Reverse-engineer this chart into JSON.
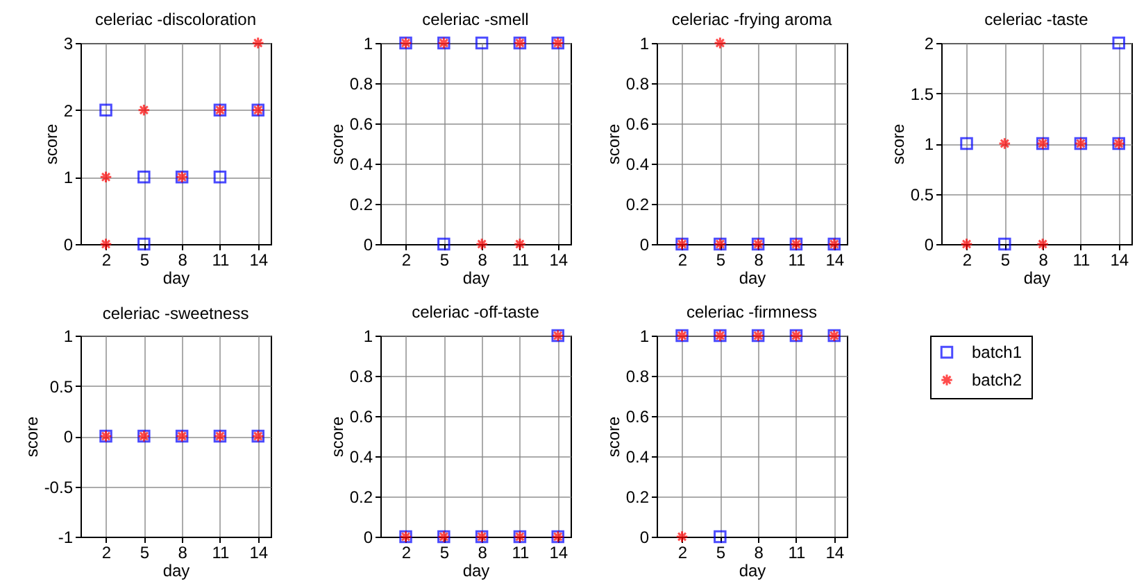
{
  "chart_data": [
    {
      "type": "scatter",
      "title": "celeriac -discoloration",
      "xlabel": "day",
      "ylabel": "score",
      "xlim": [
        0,
        15
      ],
      "xticks": [
        2,
        5,
        8,
        11,
        14
      ],
      "ylim": [
        0,
        3
      ],
      "yticks": [
        0,
        1,
        2,
        3
      ],
      "grid": true,
      "series": [
        {
          "color": "#0000ff",
          "marker": "square",
          "x": [
            2,
            5,
            5,
            8,
            11,
            11,
            14
          ],
          "values": [
            2,
            1,
            0,
            1,
            2,
            1,
            2
          ]
        },
        {
          "color": "#ff0000",
          "marker": "cross",
          "x": [
            2,
            2,
            5,
            8,
            11,
            14,
            14
          ],
          "values": [
            1,
            0,
            2,
            1,
            2,
            3,
            2
          ]
        }
      ]
    },
    {
      "type": "scatter",
      "title": "celeriac -smell",
      "xlabel": "day",
      "ylabel": "score",
      "xlim": [
        0,
        15
      ],
      "xticks": [
        2,
        5,
        8,
        11,
        14
      ],
      "ylim": [
        0,
        1
      ],
      "yticks": [
        0,
        0.2,
        0.4,
        0.6,
        0.8,
        1
      ],
      "grid": true,
      "series": [
        {
          "color": "#0000ff",
          "marker": "square",
          "x": [
            2,
            5,
            5,
            8,
            11,
            14
          ],
          "values": [
            1,
            1,
            0,
            1,
            1,
            1
          ]
        },
        {
          "color": "#ff0000",
          "marker": "cross",
          "x": [
            2,
            5,
            8,
            11,
            11,
            14
          ],
          "values": [
            1,
            1,
            0,
            1,
            0,
            1
          ]
        }
      ]
    },
    {
      "type": "scatter",
      "title": "celeriac -frying aroma",
      "xlabel": "day",
      "ylabel": "score",
      "xlim": [
        0,
        15
      ],
      "xticks": [
        2,
        5,
        8,
        11,
        14
      ],
      "ylim": [
        0,
        1
      ],
      "yticks": [
        0,
        0.2,
        0.4,
        0.6,
        0.8,
        1
      ],
      "grid": true,
      "series": [
        {
          "color": "#0000ff",
          "marker": "square",
          "x": [
            2,
            5,
            8,
            11,
            14
          ],
          "values": [
            0,
            0,
            0,
            0,
            0
          ]
        },
        {
          "color": "#ff0000",
          "marker": "cross",
          "x": [
            2,
            5,
            5,
            8,
            11,
            14
          ],
          "values": [
            0,
            0,
            1,
            0,
            0,
            0
          ]
        }
      ]
    },
    {
      "type": "scatter",
      "title": "celeriac -taste",
      "xlabel": "day",
      "ylabel": "score",
      "xlim": [
        0,
        15
      ],
      "xticks": [
        2,
        5,
        8,
        11,
        14
      ],
      "ylim": [
        0,
        2
      ],
      "yticks": [
        0,
        0.5,
        1,
        1.5,
        2
      ],
      "grid": true,
      "series": [
        {
          "color": "#0000ff",
          "marker": "square",
          "x": [
            2,
            5,
            8,
            11,
            14,
            14
          ],
          "values": [
            1,
            0,
            1,
            1,
            1,
            2
          ]
        },
        {
          "color": "#ff0000",
          "marker": "cross",
          "x": [
            2,
            5,
            8,
            8,
            11,
            14
          ],
          "values": [
            0,
            1,
            1,
            0,
            1,
            1
          ]
        }
      ]
    },
    {
      "type": "scatter",
      "title": "celeriac -sweetness",
      "xlabel": "day",
      "ylabel": "score",
      "xlim": [
        0,
        15
      ],
      "xticks": [
        2,
        5,
        8,
        11,
        14
      ],
      "ylim": [
        -1,
        1
      ],
      "yticks": [
        -1,
        -0.5,
        0,
        0.5,
        1
      ],
      "grid": true,
      "series": [
        {
          "color": "#0000ff",
          "marker": "square",
          "x": [
            2,
            5,
            8,
            11,
            14
          ],
          "values": [
            0,
            0,
            0,
            0,
            0
          ]
        },
        {
          "color": "#ff0000",
          "marker": "cross",
          "x": [
            2,
            5,
            8,
            11,
            14
          ],
          "values": [
            0,
            0,
            0,
            0,
            0
          ]
        }
      ]
    },
    {
      "type": "scatter",
      "title": "celeriac -off-taste",
      "xlabel": "day",
      "ylabel": "score",
      "xlim": [
        0,
        15
      ],
      "xticks": [
        2,
        5,
        8,
        11,
        14
      ],
      "ylim": [
        0,
        1
      ],
      "yticks": [
        0,
        0.2,
        0.4,
        0.6,
        0.8,
        1
      ],
      "grid": true,
      "series": [
        {
          "color": "#0000ff",
          "marker": "square",
          "x": [
            2,
            5,
            8,
            11,
            14,
            14
          ],
          "values": [
            0,
            0,
            0,
            0,
            0,
            1
          ]
        },
        {
          "color": "#ff0000",
          "marker": "cross",
          "x": [
            2,
            5,
            8,
            11,
            14,
            14
          ],
          "values": [
            0,
            0,
            0,
            0,
            0,
            1
          ]
        }
      ]
    },
    {
      "type": "scatter",
      "title": "celeriac -firmness",
      "xlabel": "day",
      "ylabel": "score",
      "xlim": [
        0,
        15
      ],
      "xticks": [
        2,
        5,
        8,
        11,
        14
      ],
      "ylim": [
        0,
        1
      ],
      "yticks": [
        0,
        0.2,
        0.4,
        0.6,
        0.8,
        1
      ],
      "grid": true,
      "legend": "right",
      "series": [
        {
          "name": "batch1",
          "color": "#0000ff",
          "marker": "square",
          "x": [
            2,
            5,
            5,
            8,
            11,
            14
          ],
          "values": [
            1,
            1,
            0,
            1,
            1,
            1
          ]
        },
        {
          "name": "batch2",
          "color": "#ff0000",
          "marker": "cross",
          "x": [
            2,
            2,
            5,
            8,
            11,
            14
          ],
          "values": [
            1,
            0,
            1,
            1,
            1,
            1
          ]
        }
      ]
    }
  ]
}
